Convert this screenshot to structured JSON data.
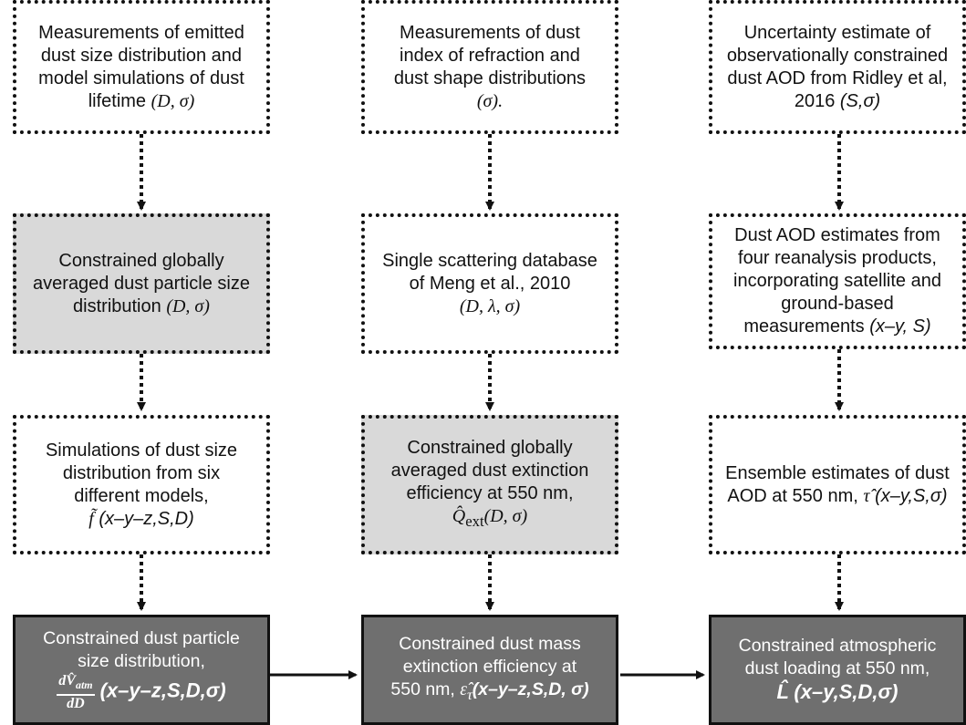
{
  "nodes": {
    "emitted_size": {
      "line1": "Measurements of",
      "line2": "emitted",
      "line3": "dust size distribution and",
      "line4": "model simulations of dust",
      "line5": "lifetime",
      "vars": "(D, σ)"
    },
    "refraction": {
      "line1": "Measurements of dust",
      "line2": "index of refraction and",
      "line3": "dust shape distributions",
      "vars": "(σ)."
    },
    "uncertainty": {
      "line1": "Uncertainty estimate of",
      "line2": "observationally constrained",
      "line3": "dust AOD from Ridley et al,",
      "line4": "2016",
      "vars": "(S,σ)"
    },
    "psd_global": {
      "line1": "Constrained globally",
      "line2": "averaged dust particle size",
      "line3": "distribution",
      "vars": "(D, σ)"
    },
    "scattering_db": {
      "line1": "Single scattering database",
      "line2": "of Meng et al., 2010",
      "vars": "(D, λ, σ)"
    },
    "aod_reanalysis": {
      "line1": "Dust AOD estimates from",
      "line2": "four reanalysis products,",
      "line3": "incorporating satellite and",
      "line4": "ground-based",
      "line5": "measurements",
      "vars": "(x–y, S)"
    },
    "simulations": {
      "line1": "Simulations of dust size",
      "line2": "distribution from six",
      "line3": "different models,",
      "symbol": "f̃",
      "vars": "(x–y–z,S,D)"
    },
    "extinction_global": {
      "line1": "Constrained globally",
      "line2": "averaged dust extinction",
      "line3": "efficiency at 550 nm,",
      "symbol": "Q̂",
      "subscript": "ext",
      "vars": "(D, σ)"
    },
    "ensemble_aod": {
      "line1": "Ensemble estimates of dust",
      "line2": "AOD at 550 nm,",
      "symbol": "τ̂",
      "vars": "(x–y,S,σ)"
    },
    "psd_constrained": {
      "line1": "Constrained dust particle",
      "line2": "size distribution,",
      "frac_num": "dV̂",
      "frac_num_sub": "atm",
      "frac_den": "dD",
      "vars": "(x–y–z,S,D,σ)"
    },
    "mee_constrained": {
      "line1": "Constrained dust mass",
      "line2": "extinction efficiency at",
      "line3": "550 nm,",
      "symbol": "ε̂",
      "subscript": "τ",
      "vars": "(x–y–z,S,D, σ)"
    },
    "loading_constrained": {
      "line1": "Constrained atmospheric",
      "line2": "dust loading at 550 nm,",
      "symbol": "L̂",
      "vars": "(x–y,S,D,σ)"
    }
  },
  "colors": {
    "dark_fill": "#6f6f6f",
    "light_fill": "#d9d9d9",
    "border": "#111111"
  }
}
